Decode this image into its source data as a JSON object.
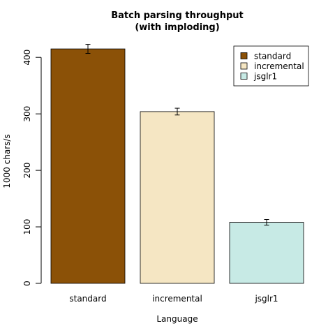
{
  "chart_data": {
    "type": "bar",
    "title": "Batch parsing throughput",
    "subtitle": "(with imploding)",
    "xlabel": "Language",
    "ylabel": "1000 chars/s",
    "categories": [
      "standard",
      "incremental",
      "jsglr1"
    ],
    "values": [
      415,
      304,
      108
    ],
    "errors": [
      8,
      6,
      5
    ],
    "colors": [
      "#8B5107",
      "#F5E6C3",
      "#C7EAE5"
    ],
    "ylim": [
      0,
      420
    ],
    "yticks": [
      "0",
      "100",
      "200",
      "300",
      "400"
    ],
    "grid": false,
    "legend": {
      "placement": "top-right",
      "entries": [
        "standard",
        "incremental",
        "jsglr1"
      ]
    }
  }
}
